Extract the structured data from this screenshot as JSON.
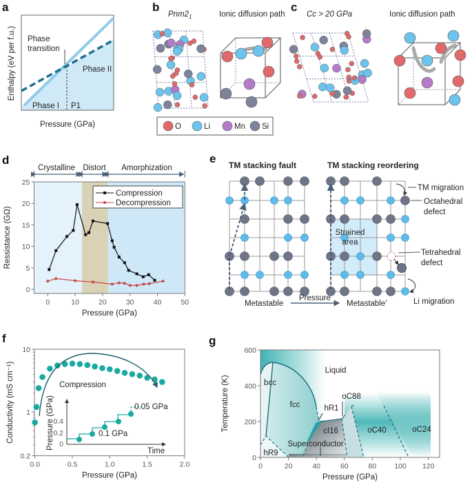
{
  "panels": {
    "a": {
      "label": "a",
      "ylabel": "Enthalpy (eV per f.u.)",
      "xlabel": "Pressure (GPa)",
      "phase_transition_1": "Phase",
      "phase_transition_2": "transition",
      "phase1": "Phase I",
      "phase2": "Phase II",
      "p1": "P1"
    },
    "b": {
      "label": "b",
      "title": "Pnm2",
      "title_sub": "1",
      "path": "Ionic diffusion path"
    },
    "c": {
      "label": "c",
      "title": "Cc > 20 GPa",
      "path": "Ionic diffusion path"
    },
    "legend": [
      {
        "name": "O",
        "color": "#e06a6a"
      },
      {
        "name": "Li",
        "color": "#6cc3ec"
      },
      {
        "name": "Mn",
        "color": "#b47cc8"
      },
      {
        "name": "Si",
        "color": "#7d8499"
      }
    ],
    "d": {
      "label": "d",
      "regions": [
        "Crystalline",
        "Distort",
        "Amorphization"
      ]
    },
    "e": {
      "label": "e",
      "title_left": "TM stacking fault",
      "title_right": "TM stacking reordering",
      "tm_migration": "TM migration",
      "octa_1": "Octahedral",
      "octa_2": "defect",
      "strained_1": "Strained",
      "strained_2": "area",
      "tetra_1": "Tetrahedral",
      "tetra_2": "defect",
      "li_migration": "Li migration",
      "metastable": "Metastable",
      "pressure": "Pressure",
      "metastable2": "Metastable’"
    },
    "f": {
      "label": "f",
      "annotation": "Compression",
      "inset_ylabel": "Pressure (GPa)",
      "inset_xlabel": "Time",
      "inset_yticks": [
        "0",
        "0.2",
        "0.4"
      ],
      "step1": "0.1 GPa",
      "step2": "0.05 GPa"
    },
    "g": {
      "label": "g"
    }
  },
  "chart_data": [
    {
      "type": "line",
      "panel": "d",
      "xlabel": "Pressure (GPa)",
      "ylabel": "Ressistance (GΩ)",
      "xlim": [
        -5,
        50
      ],
      "ylim": [
        0,
        25
      ],
      "xticks": [
        "0",
        "10",
        "20",
        "30",
        "40",
        "50"
      ],
      "yticks": [
        "0",
        "5",
        "10",
        "15",
        "20",
        "25"
      ],
      "regions": [
        {
          "name": "Crystalline",
          "range": [
            -5,
            12.5
          ]
        },
        {
          "name": "Distort",
          "range": [
            12.5,
            22
          ]
        },
        {
          "name": "Amorphization",
          "range": [
            22,
            50
          ]
        }
      ],
      "legend_position": "top-right",
      "series": [
        {
          "name": "Compression",
          "color": "#111111",
          "x": [
            0.5,
            3,
            7,
            9.3,
            10.7,
            13.8,
            15,
            16.5,
            21.8,
            23.5,
            24.2,
            26,
            28,
            29.5,
            32.5,
            34.8,
            36.8,
            39
          ],
          "y": [
            4.6,
            9,
            12.3,
            13.7,
            19.7,
            12.7,
            13.2,
            15.9,
            15.3,
            11.3,
            9.8,
            7.5,
            6.2,
            4.4,
            3.6,
            2.9,
            3.4,
            2.1
          ]
        },
        {
          "name": "Decompression",
          "color": "#c9474a",
          "x": [
            0,
            3,
            10,
            16.5,
            23.5,
            26,
            28,
            30,
            32.5,
            35,
            37,
            42
          ],
          "y": [
            1.9,
            2.5,
            2.0,
            1.7,
            1.2,
            1.5,
            1.4,
            0.9,
            0.9,
            1.2,
            1.3,
            1.9
          ]
        }
      ]
    },
    {
      "type": "scatter",
      "panel": "f",
      "xlabel": "Pressure (GPa)",
      "ylabel": "Conductivity (mS cm⁻¹)",
      "yscale": "log",
      "xlim": [
        0,
        2
      ],
      "ylim": [
        0.2,
        10
      ],
      "xticks": [
        "0.0",
        "0.5",
        "1.0",
        "1.5",
        "2.0"
      ],
      "yticks": [
        "0.2",
        "1",
        "10"
      ],
      "series": [
        {
          "name": "Compression",
          "color": "#1aa9a2",
          "x": [
            0,
            0.02,
            0.05,
            0.1,
            0.2,
            0.3,
            0.4,
            0.5,
            0.6,
            0.7,
            0.8,
            0.9,
            1.0,
            1.1,
            1.2,
            1.3,
            1.4,
            1.5,
            1.6,
            1.7
          ],
          "y": [
            0.68,
            1.2,
            2.4,
            3.6,
            4.9,
            5.5,
            5.8,
            5.9,
            5.8,
            5.6,
            5.3,
            5.0,
            4.8,
            4.5,
            4.2,
            4.0,
            3.8,
            3.5,
            3.3,
            3.0
          ]
        }
      ]
    },
    {
      "type": "area",
      "panel": "g",
      "xlabel": "Pressure (GPa)",
      "ylabel": "Temperature (K)",
      "xlim": [
        0,
        128
      ],
      "ylim": [
        0,
        600
      ],
      "xticks": [
        "0",
        "20",
        "40",
        "60",
        "80",
        "100",
        "120"
      ],
      "yticks": [
        "0",
        "200",
        "400",
        "600"
      ],
      "phases": [
        "Liquid",
        "bcc",
        "fcc",
        "hR1",
        "oC88",
        "cI16",
        "oC40",
        "oC24",
        "Superconductor",
        "hR9"
      ]
    }
  ]
}
